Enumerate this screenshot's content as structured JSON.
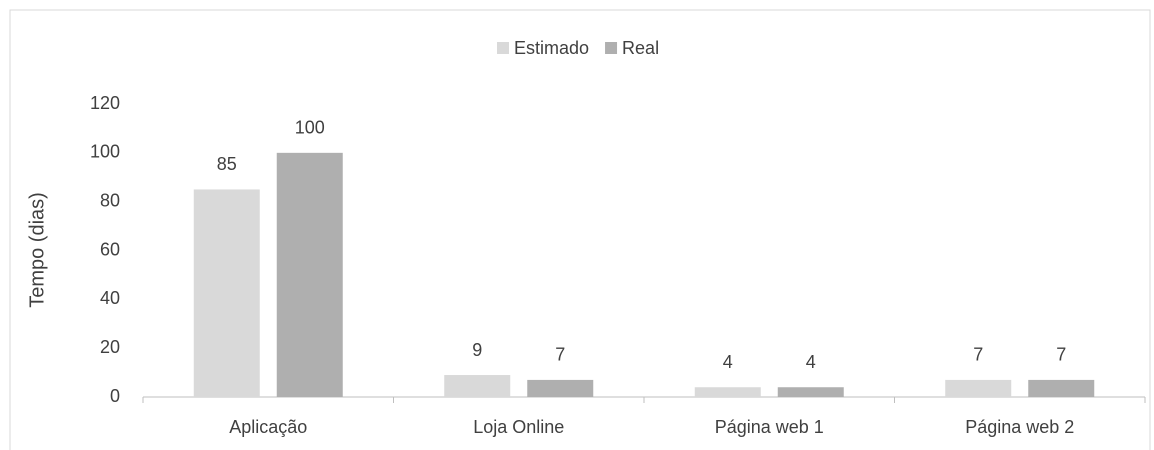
{
  "chart_data": {
    "type": "bar",
    "y_label": "Tempo (dias)",
    "categories": [
      "Aplicação",
      "Loja Online",
      "Página web 1",
      "Página web 2"
    ],
    "series": [
      {
        "name": "Estimado",
        "color": "#d9d9d9",
        "values": [
          85,
          9,
          4,
          7
        ]
      },
      {
        "name": "Real",
        "color": "#afafaf",
        "values": [
          100,
          7,
          4,
          7
        ]
      }
    ],
    "ylim": [
      0,
      120
    ],
    "yticks": [
      0,
      20,
      40,
      60,
      80,
      100,
      120
    ],
    "grid": false,
    "legend": "top"
  }
}
